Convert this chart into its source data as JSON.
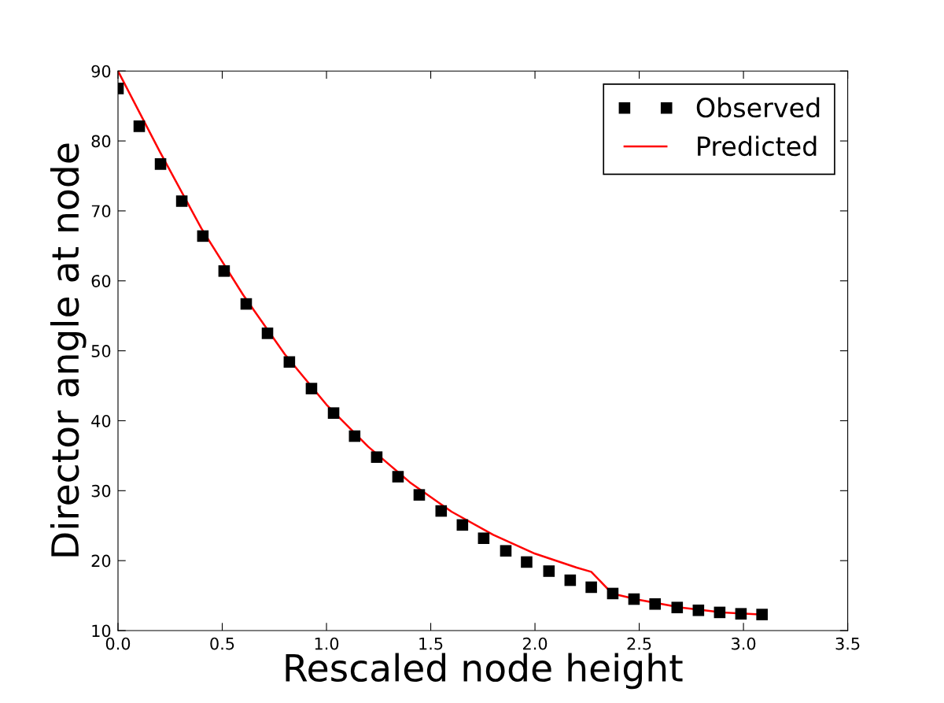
{
  "chart_data": {
    "type": "scatter",
    "xlabel": "Rescaled node height",
    "ylabel": "Director angle at node",
    "xlim": [
      0,
      3.5
    ],
    "ylim": [
      10,
      90
    ],
    "xticks": [
      {
        "value": 0,
        "label": "0.0"
      },
      {
        "value": 0.5,
        "label": "0.5"
      },
      {
        "value": 1,
        "label": "1.0"
      },
      {
        "value": 1.5,
        "label": "1.5"
      },
      {
        "value": 2,
        "label": "2.0"
      },
      {
        "value": 2.5,
        "label": "2.5"
      },
      {
        "value": 3,
        "label": "3.0"
      },
      {
        "value": 3.5,
        "label": "3.5"
      }
    ],
    "yticks": [
      10,
      20,
      30,
      40,
      50,
      60,
      70,
      80,
      90
    ],
    "grid": false,
    "legend": "top right",
    "series": [
      {
        "name": "Observed",
        "color": "#000000",
        "marker": "square",
        "x": [
          0.0,
          0.102,
          0.204,
          0.306,
          0.407,
          0.509,
          0.615,
          0.717,
          0.822,
          0.928,
          1.034,
          1.135,
          1.241,
          1.343,
          1.445,
          1.55,
          1.652,
          1.754,
          1.86,
          1.96,
          2.067,
          2.169,
          2.27,
          2.373,
          2.475,
          2.576,
          2.682,
          2.784,
          2.886,
          2.988,
          3.089
        ],
        "values": [
          87.5,
          82.1,
          76.7,
          71.4,
          66.4,
          61.4,
          56.7,
          52.5,
          48.4,
          44.6,
          41.1,
          37.8,
          34.8,
          32.0,
          29.4,
          27.1,
          25.1,
          23.2,
          21.4,
          19.8,
          18.5,
          17.2,
          16.2,
          15.3,
          14.5,
          13.8,
          13.3,
          12.9,
          12.6,
          12.4,
          12.3
        ]
      },
      {
        "name": "Predicted",
        "type": "line",
        "color": "#ff0000",
        "marker": "none",
        "line_style": "solid",
        "x": [
          0.0,
          0.2,
          0.4,
          0.6,
          0.8,
          1.0,
          1.2,
          1.4,
          1.6,
          1.8,
          2.0,
          2.2,
          2.27,
          2.37,
          2.5,
          2.7,
          2.9,
          3.09
        ],
        "values": [
          90.0,
          78.5,
          67.5,
          58.0,
          49.5,
          42.3,
          36.3,
          31.2,
          27.0,
          23.7,
          21.0,
          19.0,
          18.4,
          15.3,
          14.4,
          13.3,
          12.6,
          12.3
        ]
      }
    ]
  }
}
